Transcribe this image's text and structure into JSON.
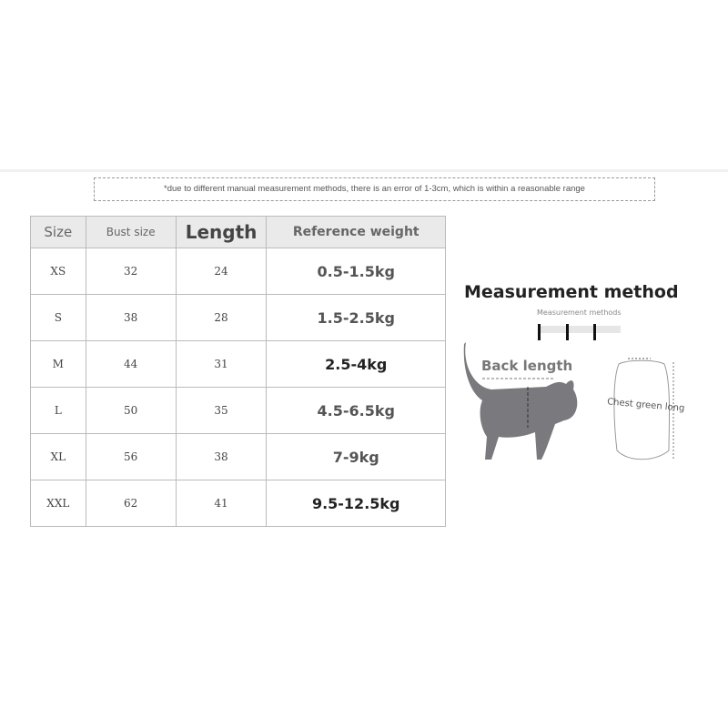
{
  "note": "*due to different manual measurement methods, there is an error of 1-3cm, which is within a reasonable range",
  "table": {
    "headers": [
      "Size",
      "Bust size",
      "Length",
      "Reference weight"
    ],
    "rows": [
      [
        "XS",
        "32",
        "24",
        "0.5-1.5kg"
      ],
      [
        "S",
        "38",
        "28",
        "1.5-2.5kg"
      ],
      [
        "M",
        "44",
        "31",
        "2.5-4kg"
      ],
      [
        "L",
        "50",
        "35",
        "4.5-6.5kg"
      ],
      [
        "XL",
        "56",
        "38",
        "7-9kg"
      ],
      [
        "XXL",
        "62",
        "41",
        "9.5-12.5kg"
      ]
    ]
  },
  "measurement": {
    "title": "Measurement method",
    "subtitle": "Measurement methods",
    "back_length": "Back length",
    "chest_label": "Chest green long"
  }
}
